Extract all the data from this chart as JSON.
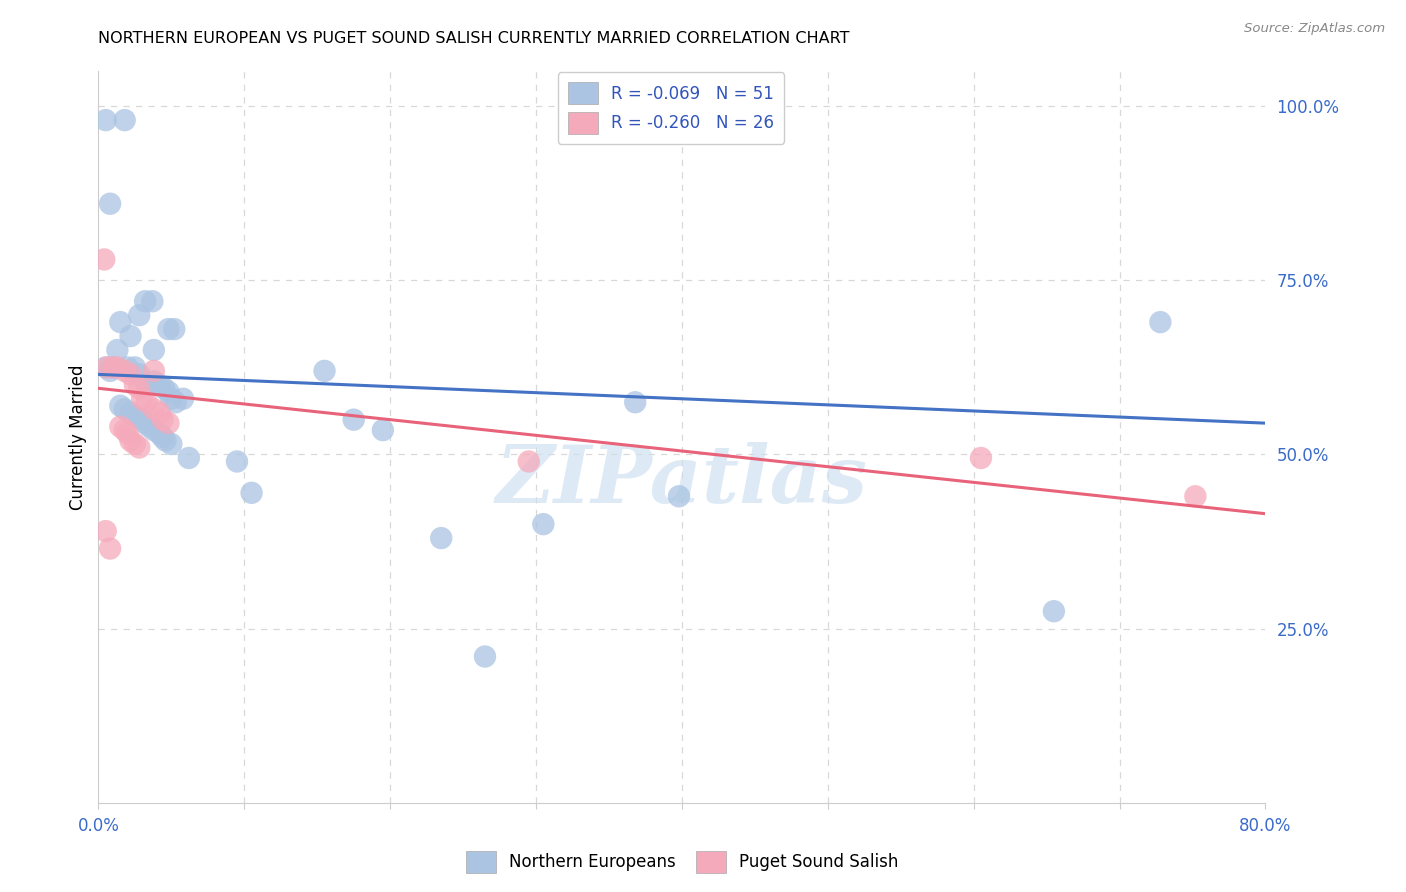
{
  "title": "NORTHERN EUROPEAN VS PUGET SOUND SALISH CURRENTLY MARRIED CORRELATION CHART",
  "source": "Source: ZipAtlas.com",
  "ylabel": "Currently Married",
  "watermark": "ZIPatlas",
  "xlim": [
    0.0,
    0.8
  ],
  "ylim": [
    0.0,
    1.05
  ],
  "xticks": [
    0.0,
    0.1,
    0.2,
    0.3,
    0.4,
    0.5,
    0.6,
    0.7,
    0.8
  ],
  "xticklabels": [
    "0.0%",
    "",
    "",
    "",
    "",
    "",
    "",
    "",
    "80.0%"
  ],
  "yticks_right": [
    0.25,
    0.5,
    0.75,
    1.0
  ],
  "yticklabels_right": [
    "25.0%",
    "50.0%",
    "75.0%",
    "100.0%"
  ],
  "legend_labels": [
    "R = -0.069   N = 51",
    "R = -0.260   N = 26"
  ],
  "blue_color": "#aac4e2",
  "pink_color": "#f5aabb",
  "blue_line_color": "#4472c4",
  "pink_line_color": "#e8637a",
  "legend_r_color": "#3355bb",
  "grid_color": "#d8d8d8",
  "blue_scatter": [
    [
      0.005,
      0.98
    ],
    [
      0.018,
      0.98
    ],
    [
      0.008,
      0.86
    ],
    [
      0.028,
      0.7
    ],
    [
      0.015,
      0.69
    ],
    [
      0.013,
      0.65
    ],
    [
      0.032,
      0.72
    ],
    [
      0.037,
      0.72
    ],
    [
      0.022,
      0.67
    ],
    [
      0.048,
      0.68
    ],
    [
      0.052,
      0.68
    ],
    [
      0.038,
      0.65
    ],
    [
      0.005,
      0.625
    ],
    [
      0.008,
      0.62
    ],
    [
      0.01,
      0.625
    ],
    [
      0.02,
      0.625
    ],
    [
      0.025,
      0.625
    ],
    [
      0.028,
      0.615
    ],
    [
      0.033,
      0.6
    ],
    [
      0.038,
      0.605
    ],
    [
      0.042,
      0.6
    ],
    [
      0.045,
      0.595
    ],
    [
      0.048,
      0.59
    ],
    [
      0.05,
      0.58
    ],
    [
      0.053,
      0.575
    ],
    [
      0.015,
      0.57
    ],
    [
      0.018,
      0.565
    ],
    [
      0.022,
      0.56
    ],
    [
      0.025,
      0.555
    ],
    [
      0.03,
      0.55
    ],
    [
      0.032,
      0.545
    ],
    [
      0.035,
      0.54
    ],
    [
      0.038,
      0.535
    ],
    [
      0.042,
      0.53
    ],
    [
      0.044,
      0.525
    ],
    [
      0.046,
      0.52
    ],
    [
      0.05,
      0.515
    ],
    [
      0.058,
      0.58
    ],
    [
      0.062,
      0.495
    ],
    [
      0.095,
      0.49
    ],
    [
      0.105,
      0.445
    ],
    [
      0.155,
      0.62
    ],
    [
      0.175,
      0.55
    ],
    [
      0.195,
      0.535
    ],
    [
      0.235,
      0.38
    ],
    [
      0.265,
      0.21
    ],
    [
      0.305,
      0.4
    ],
    [
      0.368,
      0.575
    ],
    [
      0.398,
      0.44
    ],
    [
      0.655,
      0.275
    ],
    [
      0.728,
      0.69
    ]
  ],
  "pink_scatter": [
    [
      0.006,
      0.625
    ],
    [
      0.01,
      0.625
    ],
    [
      0.013,
      0.625
    ],
    [
      0.018,
      0.62
    ],
    [
      0.022,
      0.615
    ],
    [
      0.025,
      0.6
    ],
    [
      0.028,
      0.595
    ],
    [
      0.03,
      0.58
    ],
    [
      0.033,
      0.575
    ],
    [
      0.038,
      0.565
    ],
    [
      0.042,
      0.56
    ],
    [
      0.044,
      0.55
    ],
    [
      0.048,
      0.545
    ],
    [
      0.015,
      0.54
    ],
    [
      0.018,
      0.535
    ],
    [
      0.02,
      0.53
    ],
    [
      0.022,
      0.52
    ],
    [
      0.025,
      0.515
    ],
    [
      0.028,
      0.51
    ],
    [
      0.004,
      0.78
    ],
    [
      0.038,
      0.62
    ],
    [
      0.005,
      0.39
    ],
    [
      0.008,
      0.365
    ],
    [
      0.295,
      0.49
    ],
    [
      0.605,
      0.495
    ],
    [
      0.752,
      0.44
    ]
  ],
  "blue_line_x": [
    0.0,
    0.8
  ],
  "blue_line_y": [
    0.615,
    0.545
  ],
  "pink_line_x": [
    0.0,
    0.8
  ],
  "pink_line_y": [
    0.595,
    0.415
  ]
}
